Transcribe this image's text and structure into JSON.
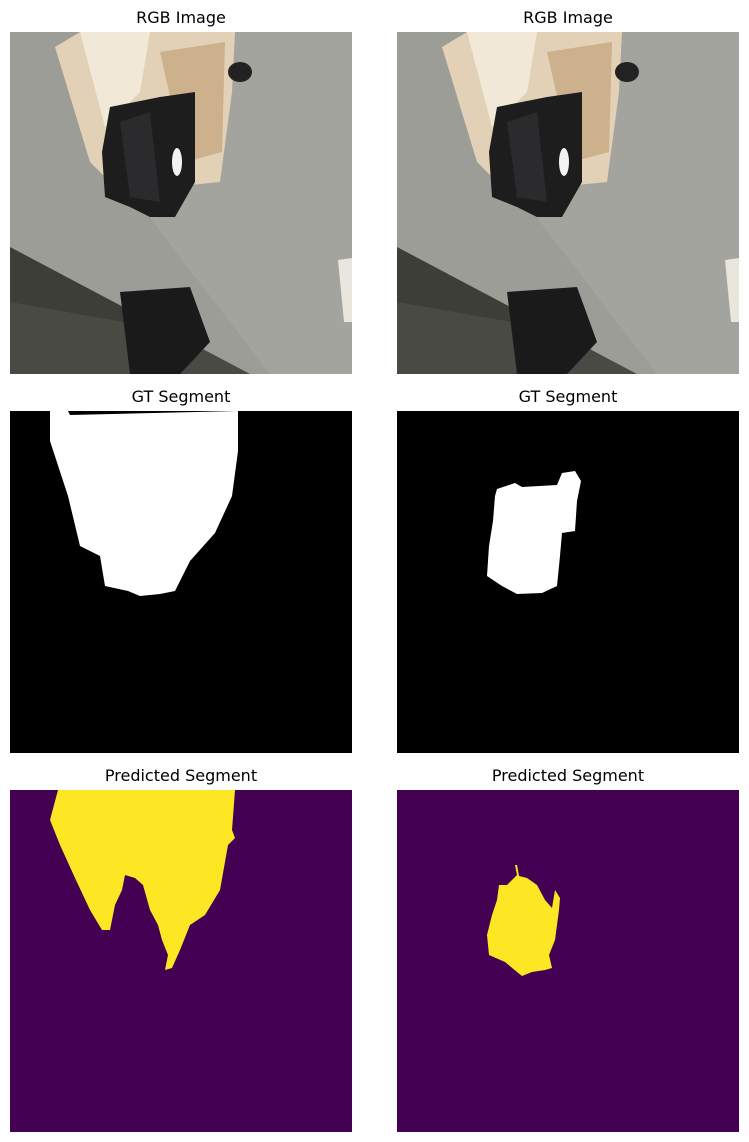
{
  "titles": {
    "row1_left": "RGB Image",
    "row1_right": "RGB Image",
    "row2_left": "GT Segment",
    "row2_right": "GT Segment",
    "row3_left": "Predicted Segment",
    "row3_right": "Predicted Segment"
  },
  "colors": {
    "mask_background": "#000000",
    "mask_foreground": "#ffffff",
    "pred_background": "#440154",
    "pred_foreground": "#fde725"
  }
}
